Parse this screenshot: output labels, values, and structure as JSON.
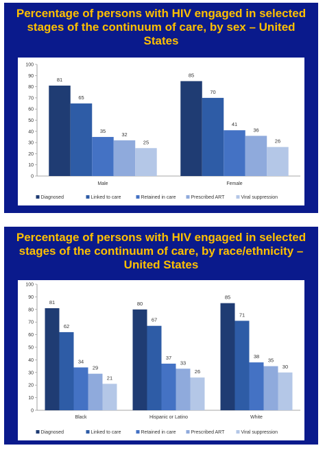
{
  "slides": [
    {
      "title": "Percentage of persons with HIV engaged in selected stages of the continuum of care, by sex – United States"
    },
    {
      "title": "Percentage of persons with HIV engaged in selected stages of the continuum of care, by race/ethnicity – United States"
    }
  ],
  "colors": {
    "slide_background": "#0a1a8c",
    "title": "#ffc000",
    "series": [
      "#1f3c73",
      "#2e5ca6",
      "#4472c4",
      "#8faadc",
      "#b4c7e7"
    ]
  },
  "chart_data": [
    {
      "type": "bar",
      "categories": [
        "Male",
        "Female"
      ],
      "series": [
        {
          "name": "Diagnosed",
          "values": [
            81,
            85
          ]
        },
        {
          "name": "Linked to care",
          "values": [
            65,
            70
          ]
        },
        {
          "name": "Retained in care",
          "values": [
            35,
            41
          ]
        },
        {
          "name": "Prescribed ART",
          "values": [
            32,
            36
          ]
        },
        {
          "name": "Viral suppression",
          "values": [
            25,
            26
          ]
        }
      ],
      "ylim": [
        0,
        100
      ],
      "yticks": [
        0,
        10,
        20,
        30,
        40,
        50,
        60,
        70,
        80,
        90,
        100
      ],
      "grid": false,
      "legend": "bottom"
    },
    {
      "type": "bar",
      "categories": [
        "Black",
        "Hispanic or Latino",
        "White"
      ],
      "series": [
        {
          "name": "Diagnosed",
          "values": [
            81,
            80,
            85
          ]
        },
        {
          "name": "Linked to care",
          "values": [
            62,
            67,
            71
          ]
        },
        {
          "name": "Retained in care",
          "values": [
            34,
            37,
            38
          ]
        },
        {
          "name": "Prescribed ART",
          "values": [
            29,
            33,
            35
          ]
        },
        {
          "name": "Viral suppression",
          "values": [
            21,
            26,
            30
          ]
        }
      ],
      "ylim": [
        0,
        100
      ],
      "yticks": [
        0,
        10,
        20,
        30,
        40,
        50,
        60,
        70,
        80,
        90,
        100
      ],
      "grid": false,
      "legend": "bottom"
    }
  ]
}
